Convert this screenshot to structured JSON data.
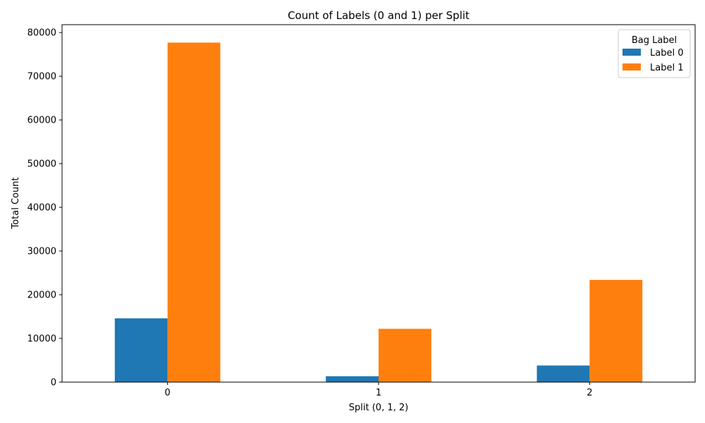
{
  "chart_data": {
    "type": "bar",
    "title": "Count of Labels (0 and 1) per Split",
    "xlabel": "Split (0, 1, 2)",
    "ylabel": "Total Count",
    "categories": [
      "0",
      "1",
      "2"
    ],
    "series": [
      {
        "name": "Label 0",
        "color": "#1f77b4",
        "values": [
          14600,
          1350,
          3800
        ]
      },
      {
        "name": "Label 1",
        "color": "#ff7f0e",
        "values": [
          77700,
          12200,
          23400
        ]
      }
    ],
    "ylim": [
      0,
      81800
    ],
    "yticks": [
      0,
      10000,
      20000,
      30000,
      40000,
      50000,
      60000,
      70000,
      80000
    ],
    "legend": {
      "title": "Bag Label",
      "placement": "top-right"
    },
    "grid": false
  }
}
